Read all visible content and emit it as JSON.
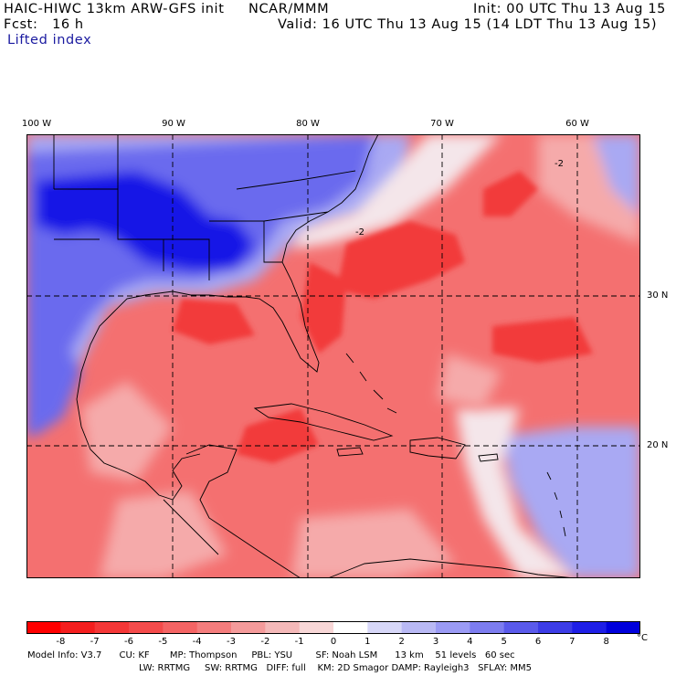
{
  "header": {
    "model_title": "HAIC-HIWC 13km ARW-GFS init",
    "org": "NCAR/MMM",
    "init": "Init: 00 UTC Thu 13 Aug 15",
    "fcst": "Fcst:   16 h",
    "valid": "Valid: 16 UTC Thu 13 Aug 15 (14 LDT Thu 13 Aug 15)",
    "field": "Lifted index"
  },
  "axes": {
    "lon_labels": [
      "100 W",
      "90 W",
      "80 W",
      "70 W",
      "60 W"
    ],
    "lat_labels": [
      "30 N",
      "20 N"
    ]
  },
  "colorbar": {
    "ticks": [
      "-8",
      "-7",
      "-6",
      "-5",
      "-4",
      "-3",
      "-2",
      "-1",
      "0",
      "1",
      "2",
      "3",
      "4",
      "5",
      "6",
      "7",
      "8"
    ],
    "unit": "°C",
    "colors": [
      "#ff0000",
      "#f51e1e",
      "#f53737",
      "#f54b4b",
      "#f56464",
      "#f57d7d",
      "#f59b9b",
      "#f5b9b9",
      "#f8d7d7",
      "#ffffff",
      "#d7d7f8",
      "#b9b9f5",
      "#9b9bf5",
      "#7d7df0",
      "#5a5aeb",
      "#3c3ce6",
      "#1e1ee6",
      "#0000dc"
    ]
  },
  "model_info": {
    "line1": "Model Info: V3.7      CU: KF       MP: Thompson     PBL: YSU        SF: Noah LSM      13 km    51 levels   60 sec",
    "line2": "LW: RRTMG     SW: RRTMG   DIFF: full    KM: 2D Smagor DAMP: Rayleigh3   SFLAY: MM5"
  },
  "map_colors": {
    "cold_strong": "#1414e6",
    "cold": "#6b6bee",
    "cool": "#a9a9f3",
    "neutral": "#f4e6ea",
    "warm_light": "#f5aaaa",
    "warm": "#f47070",
    "warm_strong": "#f23b3b",
    "coast": "#000000",
    "grid": "#000000"
  },
  "map": {
    "contour_label": "-2"
  }
}
